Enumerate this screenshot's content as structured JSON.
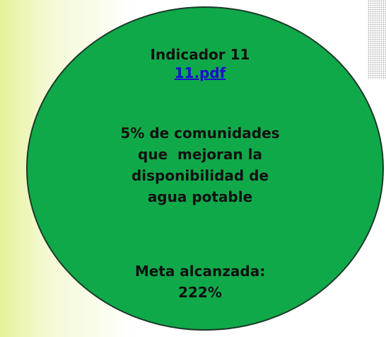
{
  "shape": {
    "title": "Indicador 11",
    "link": "11.pdf",
    "description": [
      "5% de comunidades",
      "que  mejoran la",
      "disponibilidad de",
      "agua potable"
    ],
    "result_label": "Meta alcanzada:",
    "result_value": "222%"
  }
}
